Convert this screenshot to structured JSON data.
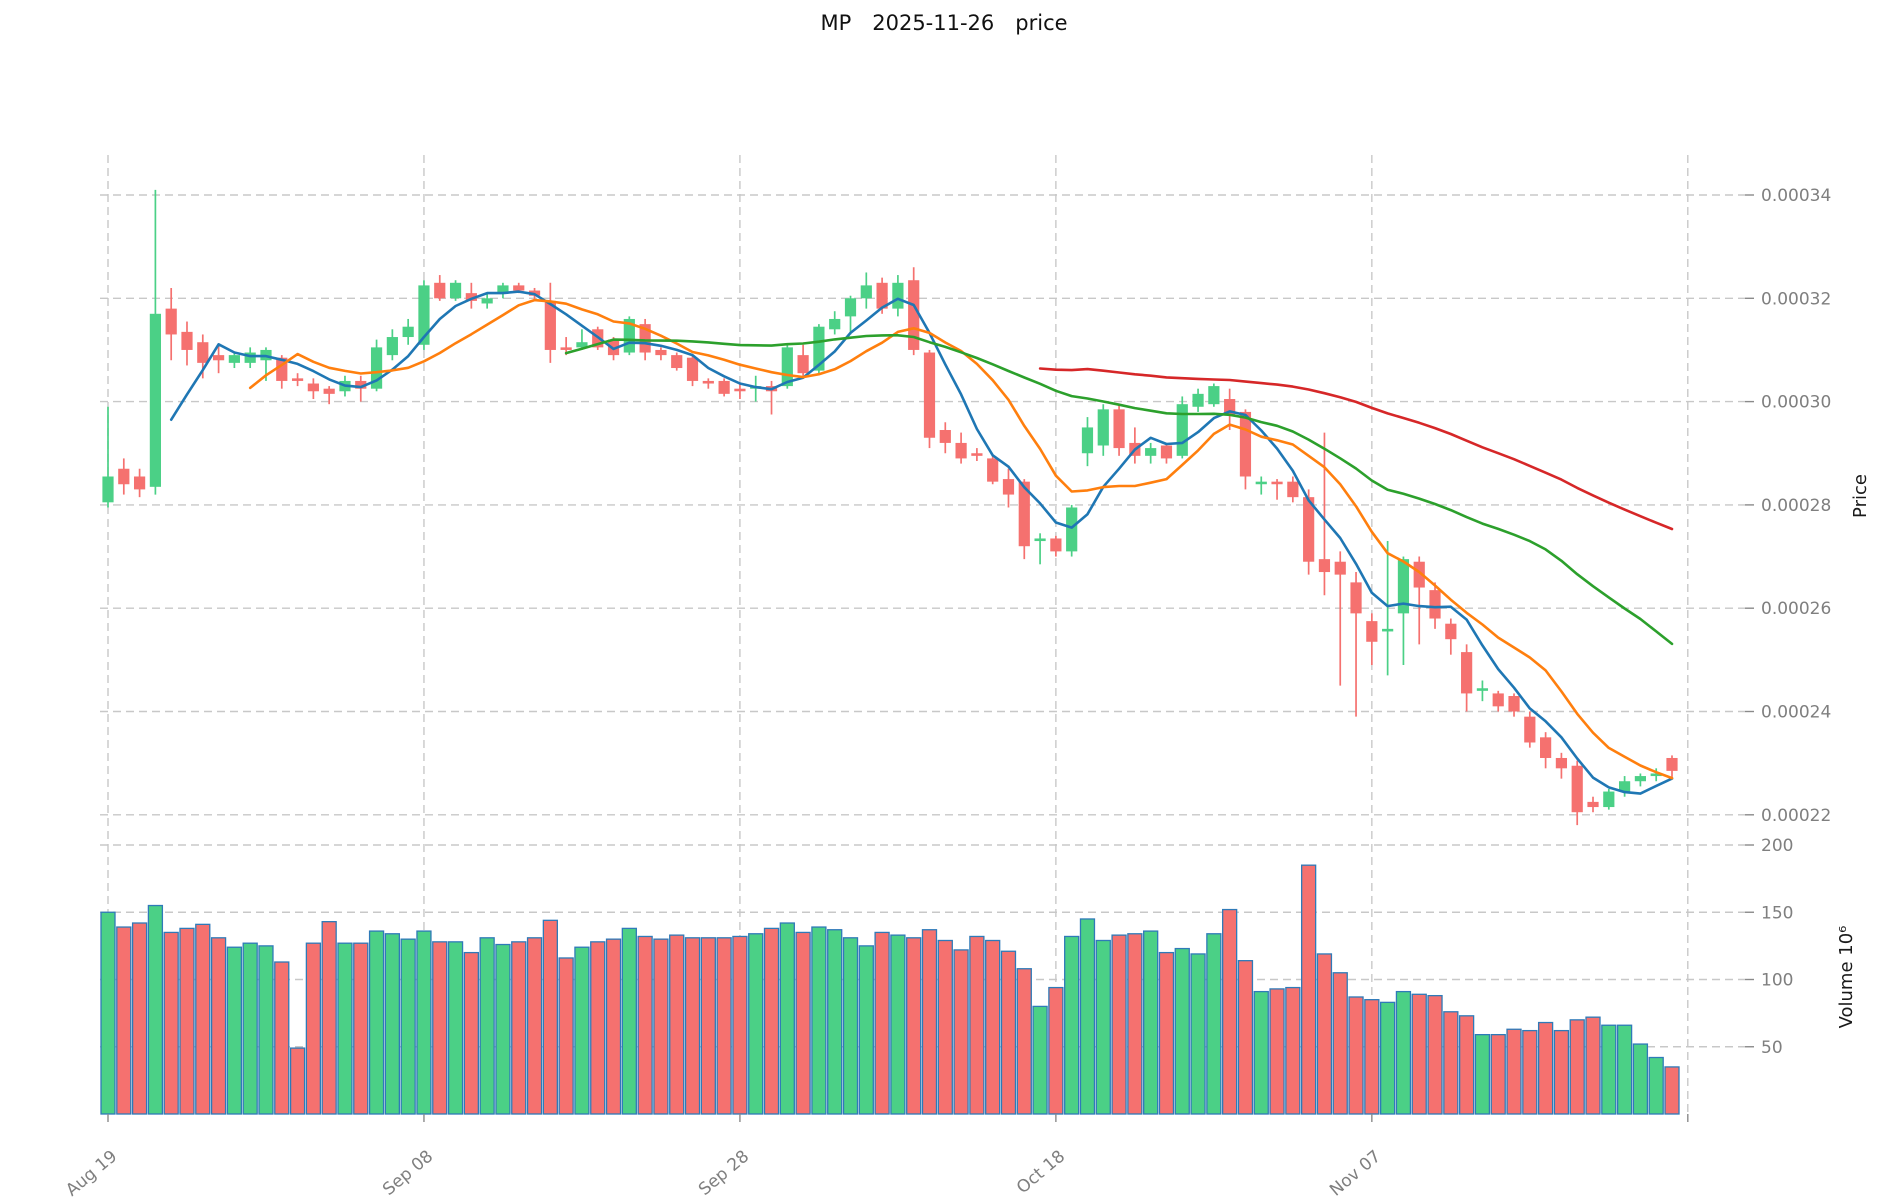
{
  "title": "MP 2025-11-26 price",
  "chart_data": {
    "type": "candlestick",
    "title": "MP 2025-11-26 price",
    "subtitle": "",
    "legend": "none",
    "grid": "dashed",
    "price_unit_multiplier": 1e-06,
    "volume_unit_label": "10⁶",
    "price_axis": {
      "label": "Price",
      "side": "right",
      "tick_values": [
        340,
        320,
        300,
        280,
        260,
        240,
        220
      ],
      "tick_labels": [
        "0.00034",
        "0.00032",
        "0.00030",
        "0.00028",
        "0.00026",
        "0.00024",
        "0.00022"
      ],
      "range": [
        216,
        348
      ]
    },
    "volume_axis": {
      "label": "Volume 10⁶",
      "side": "right",
      "tick_values": [
        200,
        150,
        100,
        50
      ],
      "tick_labels": [
        "200",
        "150",
        "100",
        "50"
      ],
      "range": [
        0,
        204
      ]
    },
    "x_axis": {
      "first_candle_label": "Aug 19",
      "last_candle_label": "Nov 26",
      "ticks": [
        {
          "i": 0,
          "label": "Aug 19"
        },
        {
          "i": 20,
          "label": "Sep 08"
        },
        {
          "i": 40,
          "label": "Sep 28"
        },
        {
          "i": 60,
          "label": "Oct 18"
        },
        {
          "i": 80,
          "label": "Nov 07"
        },
        {
          "i": 100,
          "label": ""
        }
      ]
    },
    "ma_lines": [
      {
        "name": "MA5",
        "window": 5,
        "color": "#1f77b4"
      },
      {
        "name": "MA10",
        "window": 10,
        "color": "#ff7f0e"
      },
      {
        "name": "MA30",
        "window": 30,
        "color": "#2ca02c"
      },
      {
        "name": "MA60",
        "window": 60,
        "color": "#d62728"
      }
    ],
    "colors": {
      "up": "#4bd086",
      "down": "#f5716f",
      "volume_edge": "#2f7ab8",
      "grid": "#c8c8c8",
      "tick_mark": "#8a8a8a",
      "tick_label": "#7f7f7f",
      "axis_label": "#1a1a1a",
      "background": "#ffffff"
    },
    "candles_note": "each row = [open, high, low, close, volume] ; open/high/low/close in 1e-6 price units, volume in millions",
    "candles": [
      [
        280.5,
        299,
        279.5,
        285.5,
        150
      ],
      [
        287,
        289,
        282,
        284,
        139
      ],
      [
        285.5,
        287,
        281.5,
        283,
        142
      ],
      [
        283.5,
        341,
        282,
        317,
        155
      ],
      [
        318,
        322,
        308,
        313,
        135
      ],
      [
        313.5,
        315.5,
        307,
        310,
        138
      ],
      [
        311.5,
        313,
        304.5,
        307.5,
        141
      ],
      [
        309,
        311,
        305.5,
        308,
        131
      ],
      [
        307.5,
        309.5,
        306.5,
        309,
        124
      ],
      [
        307.5,
        310.5,
        306.5,
        309.5,
        127
      ],
      [
        308,
        310.5,
        304,
        310,
        125
      ],
      [
        308.5,
        309,
        302.5,
        304,
        113
      ],
      [
        304.5,
        305.5,
        303,
        304,
        49
      ],
      [
        303.5,
        304.5,
        300.5,
        302,
        127
      ],
      [
        302.5,
        303,
        299.5,
        301.5,
        143
      ],
      [
        302,
        305,
        301,
        304,
        127
      ],
      [
        304,
        305,
        300,
        302.5,
        127
      ],
      [
        302.5,
        312,
        302,
        310.5,
        136
      ],
      [
        309,
        314,
        308,
        312.5,
        134
      ],
      [
        312.5,
        316,
        311,
        314.5,
        130
      ],
      [
        311,
        323.5,
        310,
        322.5,
        136
      ],
      [
        323,
        324.5,
        319.5,
        320,
        128
      ],
      [
        320,
        323.5,
        319.5,
        323,
        128
      ],
      [
        321,
        323,
        318,
        319.5,
        120
      ],
      [
        319,
        321,
        318,
        320,
        131
      ],
      [
        321,
        323,
        320,
        322.5,
        126
      ],
      [
        322.5,
        323,
        321,
        321.5,
        128
      ],
      [
        321.5,
        322,
        319.5,
        320.5,
        131
      ],
      [
        319.5,
        323,
        307.5,
        310,
        144
      ],
      [
        310.5,
        312.5,
        309,
        310,
        116
      ],
      [
        310.5,
        314,
        310,
        311.5,
        124
      ],
      [
        314,
        314.5,
        310,
        310.5,
        128
      ],
      [
        312,
        312.5,
        308,
        309,
        130
      ],
      [
        309.5,
        316.5,
        309,
        316,
        138
      ],
      [
        315,
        316,
        308,
        309.5,
        132
      ],
      [
        310,
        310.5,
        308,
        309,
        130
      ],
      [
        309,
        309.5,
        306,
        306.5,
        133
      ],
      [
        308.5,
        309,
        303,
        304,
        131
      ],
      [
        304,
        304.5,
        302.5,
        303.5,
        131
      ],
      [
        304,
        304.5,
        301,
        301.5,
        131
      ],
      [
        302.5,
        303.5,
        300.5,
        302,
        132
      ],
      [
        302.5,
        305,
        300,
        303,
        134
      ],
      [
        303,
        304,
        297.5,
        302,
        138
      ],
      [
        303,
        311,
        302.5,
        310.5,
        142
      ],
      [
        309,
        311,
        305,
        305.5,
        135
      ],
      [
        306,
        315,
        305.5,
        314.5,
        139
      ],
      [
        314,
        317.5,
        313,
        316,
        137
      ],
      [
        316.5,
        320.5,
        313,
        320,
        131
      ],
      [
        320,
        325,
        318,
        322.5,
        125
      ],
      [
        323,
        324,
        317,
        318,
        135
      ],
      [
        318,
        324.5,
        316.5,
        323,
        133
      ],
      [
        323.5,
        326,
        309,
        310,
        131
      ],
      [
        309.5,
        310,
        291,
        293,
        137
      ],
      [
        294.5,
        296,
        290,
        292,
        129
      ],
      [
        292,
        294,
        288,
        289,
        122
      ],
      [
        290,
        291,
        288.5,
        289.5,
        132
      ],
      [
        289,
        289.5,
        284,
        284.5,
        129
      ],
      [
        285,
        287,
        279.5,
        282,
        121
      ],
      [
        284.5,
        285,
        269.5,
        272,
        108
      ],
      [
        273,
        274.5,
        268.5,
        273.5,
        80
      ],
      [
        273.5,
        274,
        270,
        271,
        94
      ],
      [
        271,
        280,
        270,
        279.5,
        132
      ],
      [
        290,
        297,
        287.5,
        295,
        145
      ],
      [
        291.5,
        299.5,
        289.5,
        298.5,
        129
      ],
      [
        298.5,
        299.5,
        289.5,
        291,
        133
      ],
      [
        292,
        295,
        288,
        289.5,
        134
      ],
      [
        289.5,
        292,
        288,
        291,
        136
      ],
      [
        291.5,
        292,
        288,
        289,
        120
      ],
      [
        289.5,
        301,
        289,
        299.5,
        123
      ],
      [
        299,
        302.5,
        298,
        301.5,
        119
      ],
      [
        299.5,
        303.5,
        299,
        303,
        134
      ],
      [
        300.5,
        302.5,
        294.5,
        297.5,
        152
      ],
      [
        298,
        298.5,
        283,
        285.5,
        114
      ],
      [
        284,
        285.5,
        282,
        284.5,
        91
      ],
      [
        284.5,
        285,
        281,
        284,
        93
      ],
      [
        284.5,
        285.5,
        280.5,
        281.5,
        94
      ],
      [
        281.5,
        283,
        266.5,
        269,
        185
      ],
      [
        269.5,
        294,
        262.5,
        267,
        119
      ],
      [
        269,
        271,
        245,
        266.5,
        105
      ],
      [
        265,
        267,
        239,
        259,
        87
      ],
      [
        257.5,
        259,
        249,
        253.5,
        85
      ],
      [
        255.5,
        273,
        247,
        256,
        83
      ],
      [
        259,
        270,
        249,
        269.5,
        91
      ],
      [
        269,
        270,
        253,
        264,
        89
      ],
      [
        263.5,
        265,
        256,
        258,
        88
      ],
      [
        257,
        258,
        251,
        254,
        76
      ],
      [
        251.5,
        253,
        240,
        243.5,
        73
      ],
      [
        244,
        246,
        242,
        244.5,
        59
      ],
      [
        243.5,
        244,
        240,
        241,
        59
      ],
      [
        243,
        243.5,
        239,
        240,
        63
      ],
      [
        239,
        240,
        233,
        234,
        62
      ],
      [
        235,
        236,
        229,
        231,
        68
      ],
      [
        231,
        232,
        227,
        229,
        62
      ],
      [
        229.5,
        230.5,
        218,
        220.5,
        70
      ],
      [
        222.5,
        223.5,
        220.5,
        221.5,
        72
      ],
      [
        221.5,
        225,
        221,
        224.5,
        66
      ],
      [
        224.5,
        227.5,
        223.5,
        226.5,
        66
      ],
      [
        226.5,
        228,
        225.5,
        227.5,
        52
      ],
      [
        227.5,
        229,
        226.5,
        228,
        42
      ],
      [
        231,
        231.5,
        227,
        228.5,
        35
      ]
    ]
  }
}
